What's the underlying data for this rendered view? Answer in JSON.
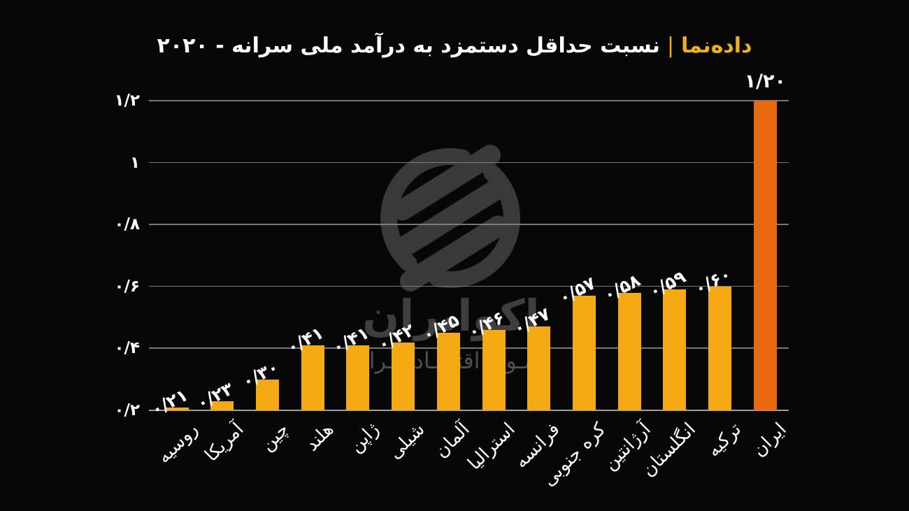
{
  "header": {
    "brand": "داده‌نما",
    "separator": "|",
    "title": "نسبت حداقل دستمزد به درآمد ملی سرانه - ۲۰۲۰"
  },
  "watermark": {
    "name": "اکوایران",
    "tagline": "تصـویر اقتصـاد ایـران"
  },
  "chart_data": {
    "type": "bar",
    "title": "نسبت حداقل دستمزد به درآمد ملی سرانه - ۲۰۲۰",
    "categories": [
      "روسیه",
      "آمریکا",
      "چین",
      "هلند",
      "ژاپن",
      "شیلی",
      "آلمان",
      "استرالیا",
      "فرانسه",
      "کره جنوبی",
      "آرژانتین",
      "انگلستان",
      "ترکیه",
      "ایران"
    ],
    "values": [
      0.21,
      0.23,
      0.3,
      0.41,
      0.41,
      0.42,
      0.45,
      0.46,
      0.47,
      0.57,
      0.58,
      0.59,
      0.6,
      1.2
    ],
    "value_labels": [
      "۰/۲۱",
      "۰/۲۳",
      "۰/۳۰",
      "۰/۴۱",
      "۰/۴۱",
      "۰/۴۲",
      "۰/۴۵",
      "۰/۴۶",
      "۰/۴۷",
      "۰/۵۷",
      "۰/۵۸",
      "۰/۵۹",
      "۰/۶۰",
      "۱/۲۰"
    ],
    "y_ticks": [
      {
        "label": "۱/۲",
        "value": 1.2
      },
      {
        "label": "۱",
        "value": 1.0
      },
      {
        "label": "۰/۸",
        "value": 0.8
      },
      {
        "label": "۰/۶",
        "value": 0.6
      },
      {
        "label": "۰/۴",
        "value": 0.4
      },
      {
        "label": "۰/۲",
        "value": 0.2
      }
    ],
    "ylim": [
      0.2,
      1.2
    ],
    "grid": "horizontal",
    "legend": false,
    "highlight_category": "ایران",
    "highlight_index": 13,
    "colors": {
      "bar": "#F5A915",
      "highlight_bar": "#E8690F",
      "grid": "#8C8C8C",
      "text": "#FFFFFF",
      "accent": "#EDB11E",
      "background": "#070707",
      "watermark": "#3E3E3E"
    }
  }
}
